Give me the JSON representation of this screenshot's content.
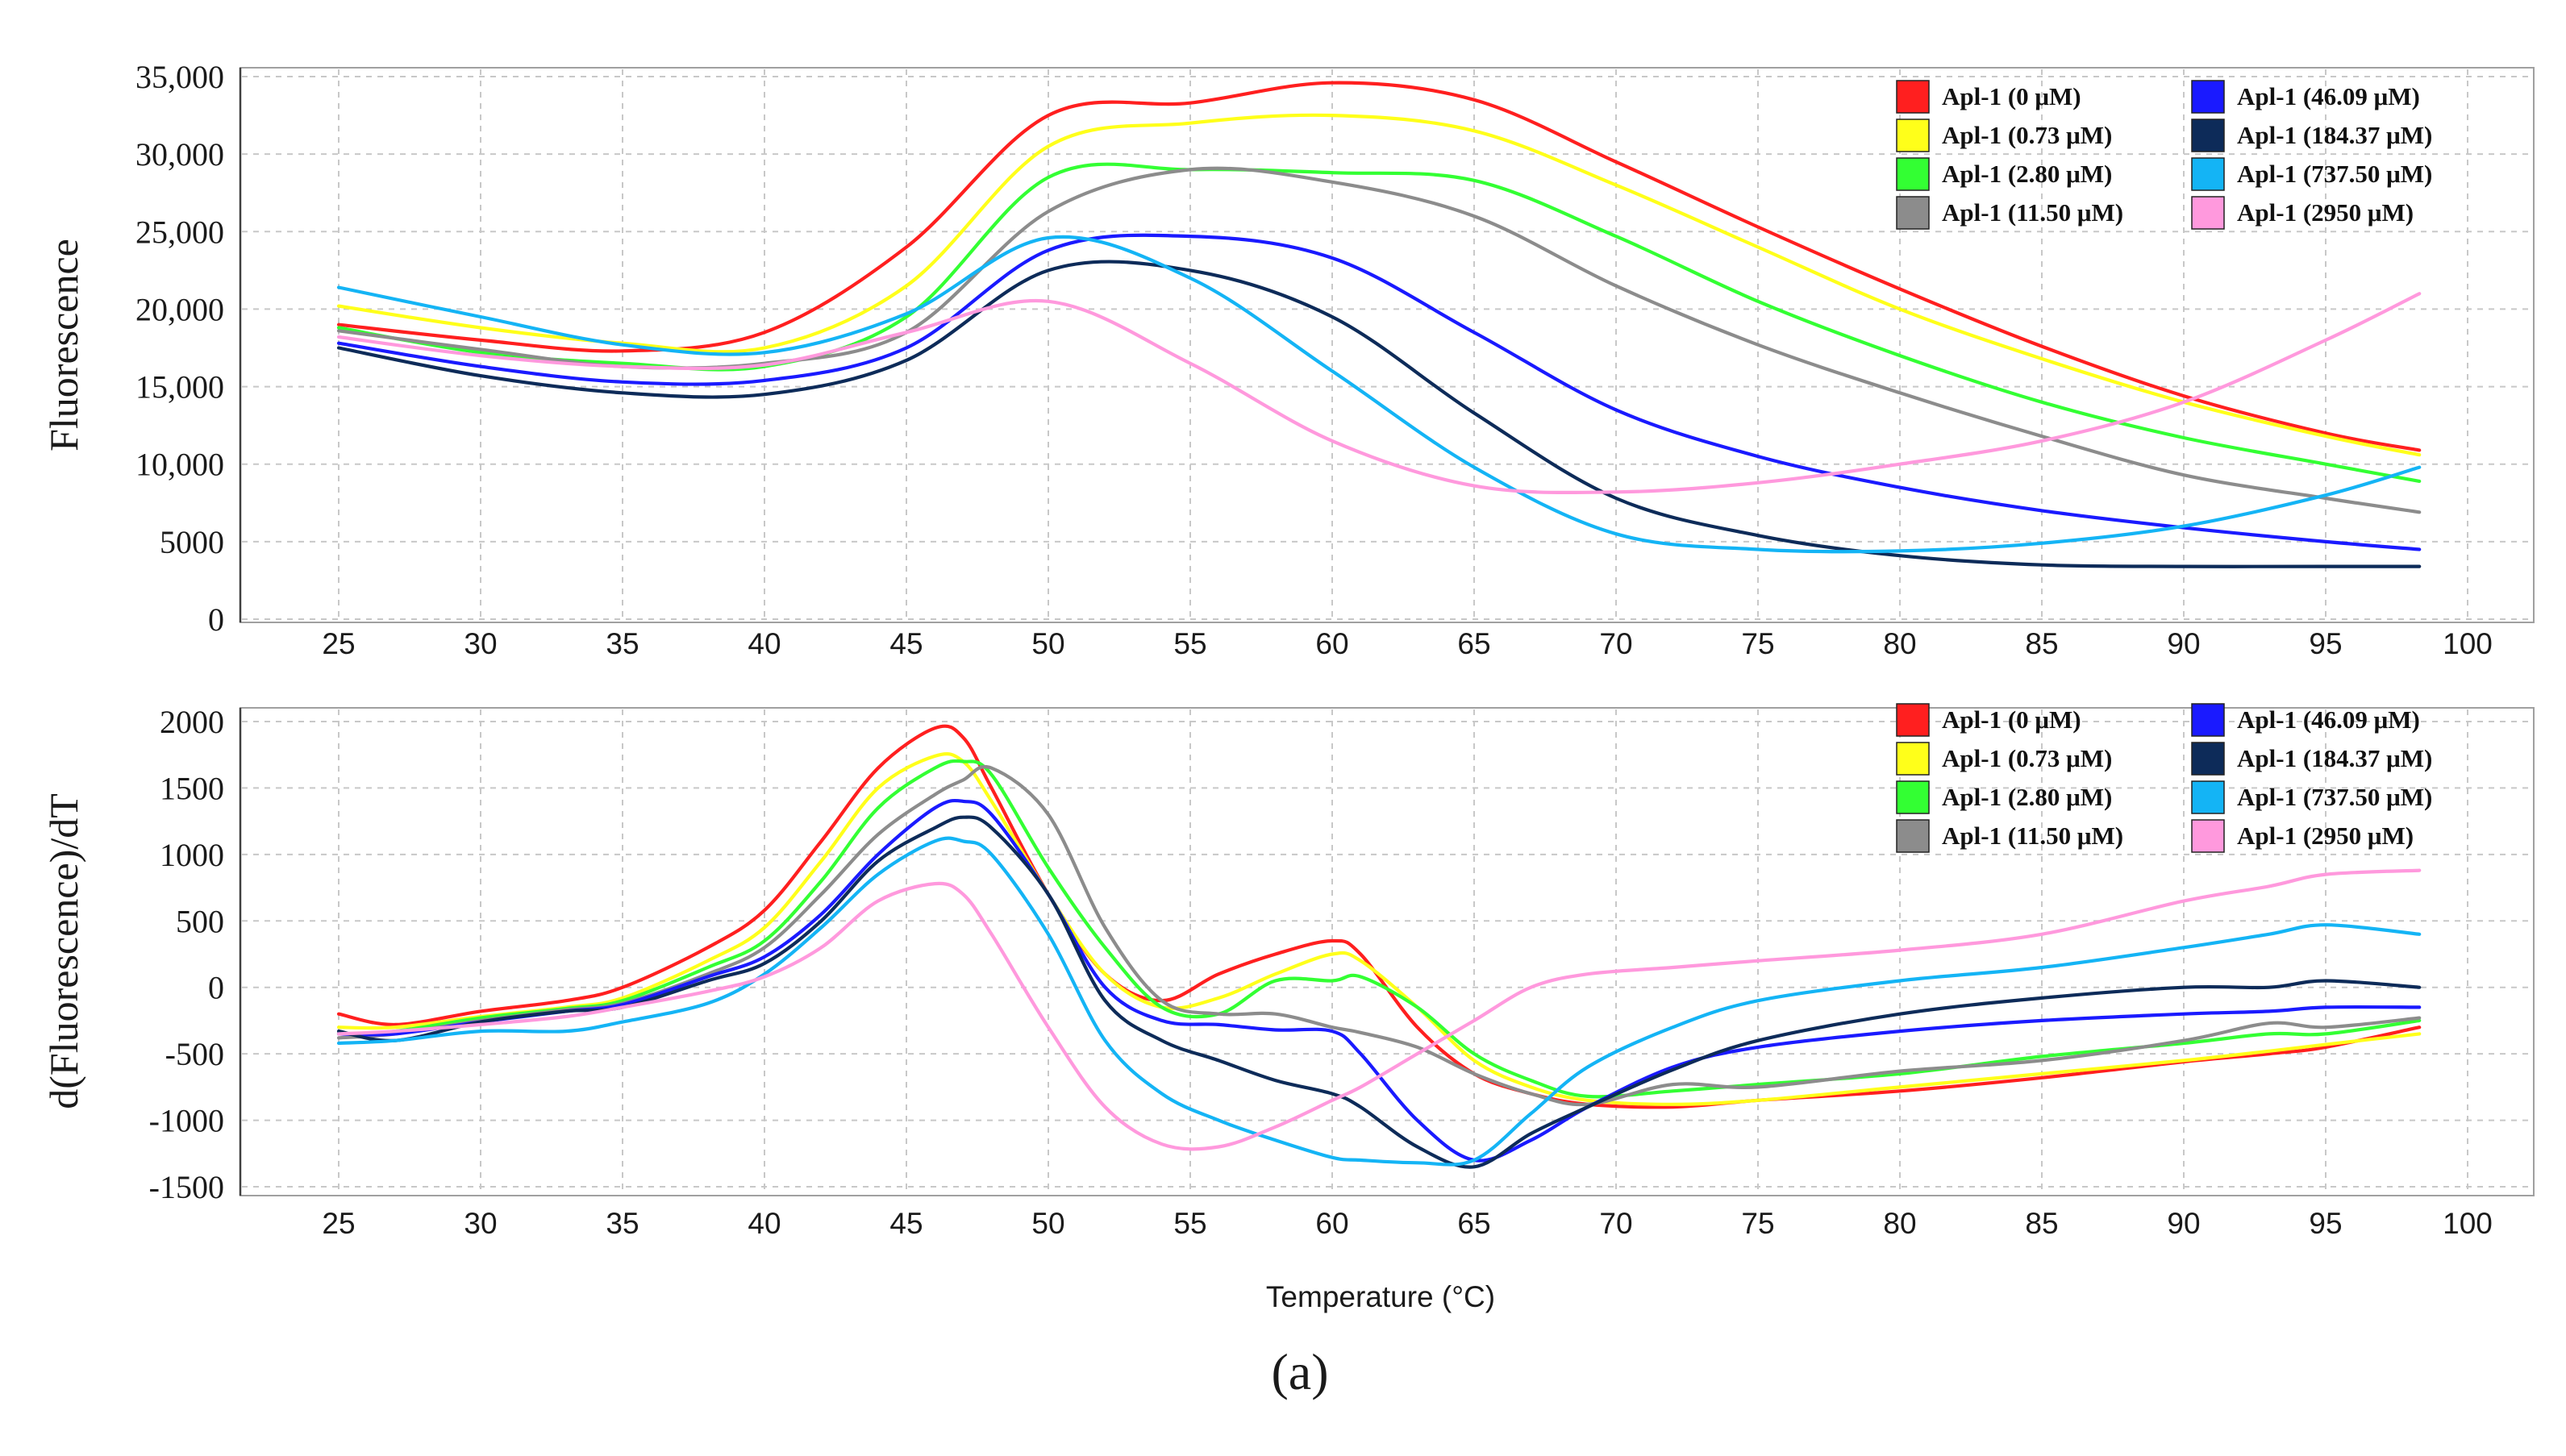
{
  "figure_label": "(a)",
  "legend_entries": [
    {
      "label": "Apl-1  (0 μM)",
      "color": "#ff1f1f"
    },
    {
      "label": "Apl-1  (0.73 μM)",
      "color": "#ffff1a"
    },
    {
      "label": "Apl-1  (2.80 μM)",
      "color": "#33ff33"
    },
    {
      "label": "Apl-1  (11.50 μM)",
      "color": "#8c8c8c"
    },
    {
      "label": "Apl-1  (46.09 μM)",
      "color": "#1a1aff"
    },
    {
      "label": "Apl-1  (184.37 μM)",
      "color": "#0d2b59"
    },
    {
      "label": "Apl-1  (737.50 μM)",
      "color": "#14b4f5"
    },
    {
      "label": "Apl-1  (2950 μM)",
      "color": "#ff99dd"
    }
  ],
  "chart_data": [
    {
      "type": "line",
      "title": "",
      "xlabel": "",
      "ylabel": "Fluorescence",
      "xlim": [
        21.5,
        101.5
      ],
      "ylim": [
        0,
        35000
      ],
      "xticks": [
        "25",
        "30",
        "35",
        "40",
        "45",
        "50",
        "55",
        "60",
        "65",
        "70",
        "75",
        "80",
        "85",
        "90",
        "95",
        "100"
      ],
      "yticks": [
        "0",
        "5000",
        "10,000",
        "15,000",
        "20,000",
        "25,000",
        "30,000",
        "35,000"
      ],
      "grid": true,
      "legend": "top-right",
      "x": [
        25,
        30,
        35,
        40,
        45,
        50,
        55,
        60,
        65,
        70,
        75,
        80,
        85,
        90,
        95,
        98.3
      ],
      "series": [
        {
          "name": "Apl-1  (0 μM)",
          "values": [
            19000,
            18000,
            17300,
            18500,
            24000,
            32500,
            33300,
            34600,
            33500,
            29500,
            25300,
            21300,
            17600,
            14400,
            12000,
            10900
          ]
        },
        {
          "name": "Apl-1  (0.73 μM)",
          "values": [
            20200,
            18800,
            17800,
            17500,
            21500,
            30500,
            32000,
            32500,
            31500,
            28000,
            24000,
            20000,
            16800,
            14000,
            11800,
            10600
          ]
        },
        {
          "name": "Apl-1  (2.80 μM)",
          "values": [
            18800,
            17200,
            16500,
            16300,
            19500,
            28500,
            29000,
            28800,
            28300,
            24700,
            20500,
            17000,
            14000,
            11700,
            10000,
            8900
          ]
        },
        {
          "name": "Apl-1  (11.50 μM)",
          "values": [
            18600,
            17400,
            16300,
            16500,
            18500,
            26300,
            29000,
            28200,
            26000,
            21500,
            17700,
            14600,
            11800,
            9300,
            7800,
            6900
          ]
        },
        {
          "name": "Apl-1  (46.09 μM)",
          "values": [
            17800,
            16300,
            15300,
            15400,
            17500,
            23800,
            24700,
            23300,
            18500,
            13500,
            10500,
            8500,
            7000,
            5900,
            5000,
            4500
          ]
        },
        {
          "name": "Apl-1  (184.37 μM)",
          "values": [
            17500,
            15700,
            14600,
            14500,
            16700,
            22500,
            22500,
            19500,
            13300,
            7800,
            5400,
            4100,
            3500,
            3400,
            3400,
            3400
          ]
        },
        {
          "name": "Apl-1  (737.50 μM)",
          "values": [
            21400,
            19500,
            17700,
            17200,
            19700,
            24600,
            22000,
            16000,
            9800,
            5500,
            4500,
            4400,
            4900,
            6000,
            8000,
            9800
          ]
        },
        {
          "name": "Apl-1  (2950 μM)",
          "values": [
            18200,
            17000,
            16300,
            16400,
            18500,
            20500,
            16500,
            11500,
            8600,
            8200,
            8800,
            10000,
            11500,
            14000,
            18000,
            21000
          ]
        }
      ]
    },
    {
      "type": "line",
      "title": "",
      "xlabel": "Temperature (°C)",
      "ylabel": "d(Fluorescence)/dT",
      "xlim": [
        21.5,
        101.5
      ],
      "ylim": [
        -1500,
        2000
      ],
      "xticks": [
        "25",
        "30",
        "35",
        "40",
        "45",
        "50",
        "55",
        "60",
        "65",
        "70",
        "75",
        "80",
        "85",
        "90",
        "95",
        "100"
      ],
      "yticks": [
        "-1500",
        "-1000",
        "-500",
        "0",
        "500",
        "1000",
        "1500",
        "2000"
      ],
      "grid": true,
      "legend": "top-right",
      "x": [
        25,
        27,
        30,
        33,
        35,
        38,
        40,
        42,
        44,
        46,
        47,
        48,
        50,
        52,
        54,
        56,
        58,
        60,
        61,
        63,
        65,
        67,
        69,
        72,
        75,
        80,
        85,
        90,
        93,
        95,
        98.3
      ],
      "series": [
        {
          "name": "Apl-1  (0 μM)",
          "values": [
            -200,
            -280,
            -180,
            -100,
            0,
            300,
            580,
            1100,
            1650,
            1950,
            1880,
            1500,
            700,
            100,
            -100,
            100,
            250,
            350,
            250,
            -300,
            -650,
            -800,
            -880,
            -900,
            -850,
            -780,
            -680,
            -560,
            -500,
            -450,
            -300
          ]
        },
        {
          "name": "Apl-1  (0.73 μM)",
          "values": [
            -300,
            -300,
            -220,
            -150,
            -80,
            200,
            450,
            950,
            1500,
            1740,
            1700,
            1400,
            700,
            100,
            -150,
            -80,
            100,
            250,
            200,
            -150,
            -550,
            -750,
            -850,
            -880,
            -850,
            -750,
            -650,
            -550,
            -480,
            -430,
            -350
          ]
        },
        {
          "name": "Apl-1  (2.80 μM)",
          "values": [
            -350,
            -330,
            -230,
            -160,
            -100,
            150,
            350,
            800,
            1350,
            1650,
            1700,
            1600,
            900,
            300,
            -150,
            -200,
            50,
            50,
            80,
            -150,
            -500,
            -700,
            -820,
            -780,
            -730,
            -650,
            -520,
            -420,
            -350,
            -350,
            -250
          ]
        },
        {
          "name": "Apl-1  (11.50 μM)",
          "values": [
            -380,
            -350,
            -250,
            -170,
            -120,
            100,
            300,
            700,
            1150,
            1450,
            1560,
            1650,
            1300,
            450,
            -100,
            -200,
            -200,
            -300,
            -340,
            -450,
            -650,
            -800,
            -880,
            -730,
            -750,
            -630,
            -550,
            -400,
            -270,
            -300,
            -230
          ]
        },
        {
          "name": "Apl-1  (46.09 μM)",
          "values": [
            -350,
            -350,
            -260,
            -180,
            -130,
            80,
            230,
            550,
            1000,
            1350,
            1400,
            1300,
            700,
            0,
            -250,
            -280,
            -320,
            -330,
            -500,
            -1000,
            -1300,
            -1150,
            -900,
            -600,
            -450,
            -330,
            -250,
            -200,
            -180,
            -150,
            -150
          ]
        },
        {
          "name": "Apl-1  (184.37 μM)",
          "values": [
            -330,
            -400,
            -260,
            -180,
            -150,
            50,
            180,
            500,
            950,
            1200,
            1280,
            1200,
            700,
            -100,
            -400,
            -550,
            -700,
            -800,
            -900,
            -1200,
            -1350,
            -1100,
            -900,
            -620,
            -400,
            -200,
            -80,
            0,
            0,
            50,
            0
          ]
        },
        {
          "name": "Apl-1  (737.50 μM)",
          "values": [
            -420,
            -400,
            -330,
            -330,
            -260,
            -120,
            100,
            450,
            850,
            1100,
            1100,
            1000,
            400,
            -400,
            -800,
            -1000,
            -1150,
            -1280,
            -1300,
            -1320,
            -1300,
            -950,
            -600,
            -300,
            -100,
            50,
            150,
            300,
            400,
            470,
            400
          ]
        },
        {
          "name": "Apl-1  (2950 μM)",
          "values": [
            -350,
            -330,
            -280,
            -220,
            -150,
            -30,
            80,
            300,
            650,
            780,
            700,
            400,
            -300,
            -900,
            -1180,
            -1200,
            -1050,
            -850,
            -750,
            -500,
            -250,
            0,
            100,
            150,
            200,
            280,
            400,
            650,
            760,
            850,
            880
          ]
        }
      ]
    }
  ]
}
